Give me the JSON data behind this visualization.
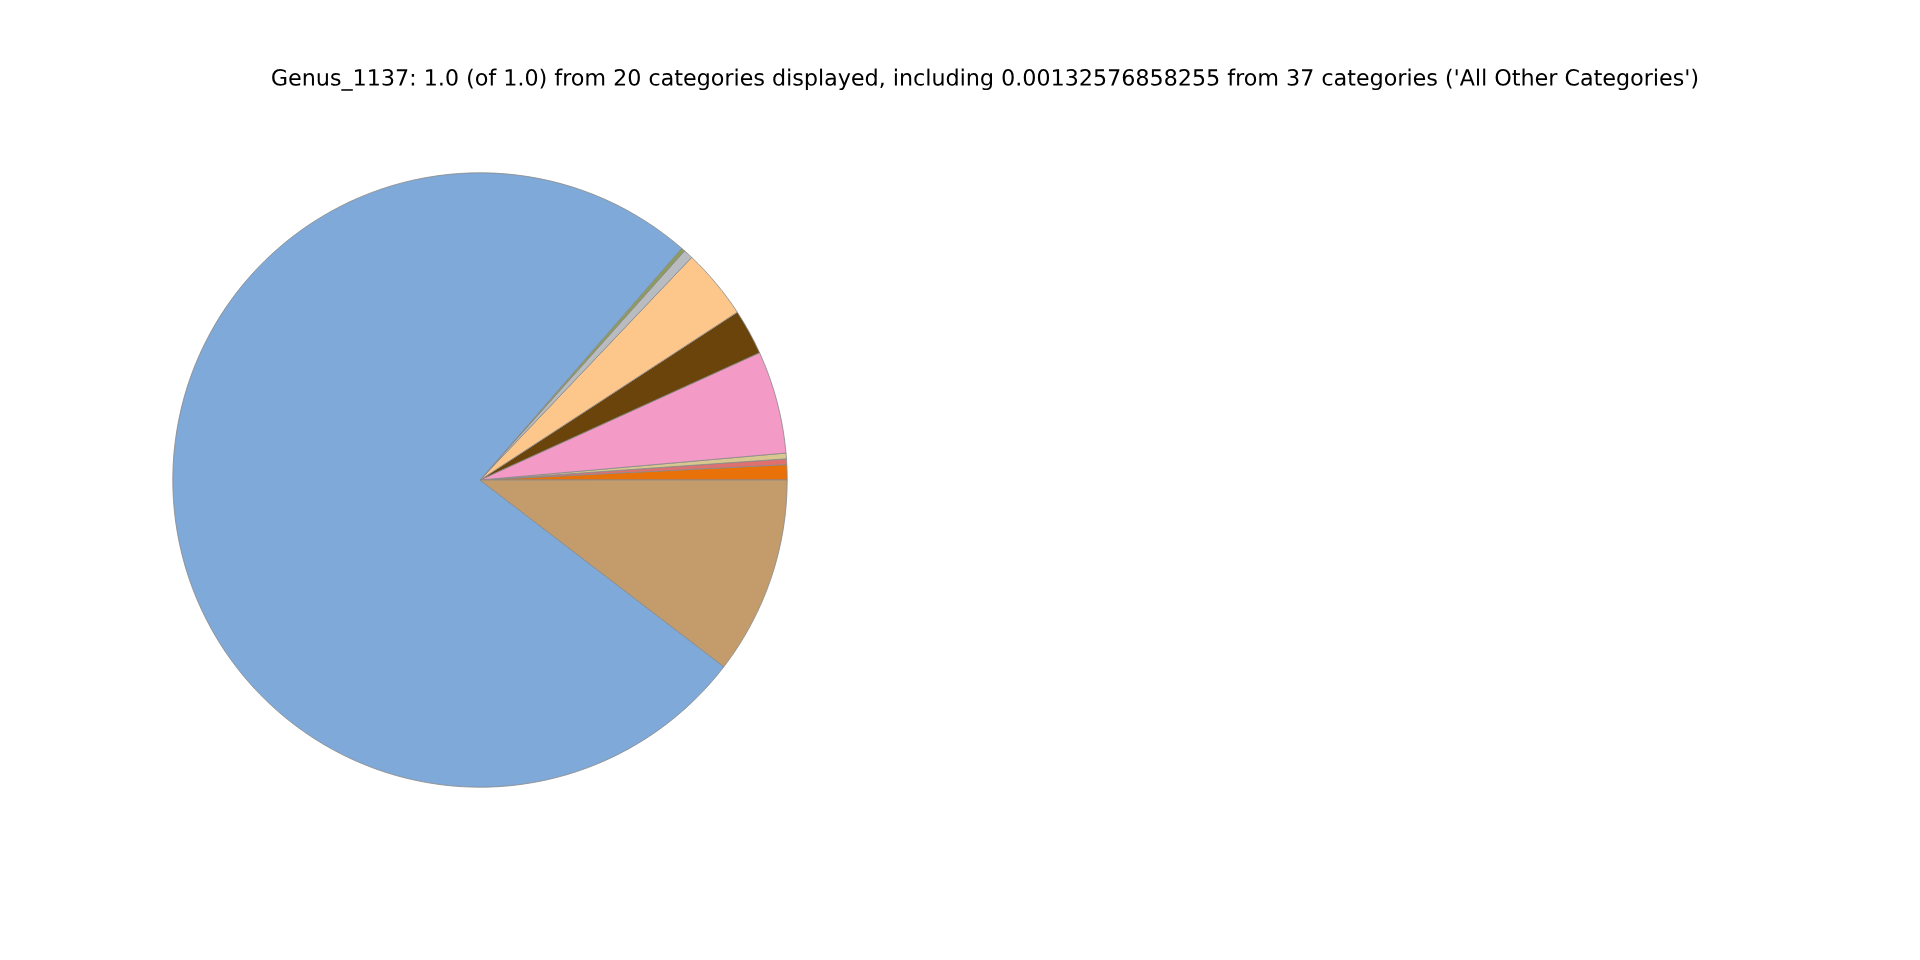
{
  "chart_data": {
    "type": "pie",
    "title": "Genus_1137: 1.0 (of 1.0) from 20 categories displayed, including 0.00132576858255 from 37 categories ('All Other Categories')",
    "categories": [
      null,
      null,
      null,
      null,
      null,
      null,
      null,
      null,
      null,
      null
    ],
    "values": [
      0.8,
      0.3,
      0.3,
      5.4,
      2.4,
      3.7,
      0.5,
      0.2,
      76.0,
      10.4
    ],
    "colors": [
      "#e8710a",
      "#e07070",
      "#d8c890",
      "#f49ac6",
      "#6b440c",
      "#fdc78c",
      "#b8bcc0",
      "#8c9c5c",
      "#7ea9d9",
      "#c49c6b"
    ]
  }
}
